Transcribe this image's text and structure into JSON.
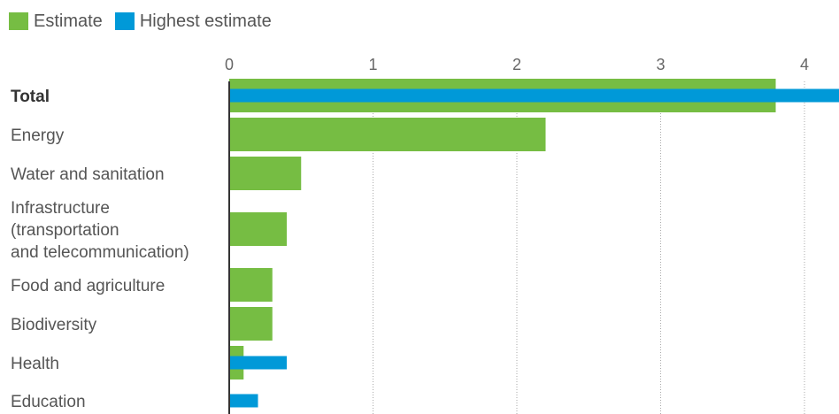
{
  "chart_data": {
    "type": "bar",
    "orientation": "horizontal",
    "title": "",
    "xlabel": "",
    "ylabel": "",
    "xlim": [
      0,
      4.25
    ],
    "ticks": [
      0,
      1,
      2,
      3,
      4
    ],
    "grid": true,
    "legend_position": "top-left",
    "categories": [
      [
        "Total"
      ],
      [
        "Energy"
      ],
      [
        "Water and sanitation"
      ],
      [
        "Infrastructure",
        "(transportation",
        "and telecommunication)"
      ],
      [
        "Food and agriculture"
      ],
      [
        "Biodiversity"
      ],
      [
        "Health"
      ],
      [
        "Education"
      ]
    ],
    "series": [
      {
        "name": "Estimate",
        "color": "#76bd43",
        "values": [
          3.8,
          2.2,
          0.5,
          0.4,
          0.3,
          0.3,
          0.1,
          null
        ]
      },
      {
        "name": "Highest estimate",
        "color": "#0099d8",
        "values": [
          4.3,
          null,
          null,
          null,
          null,
          null,
          0.4,
          0.2
        ]
      }
    ]
  }
}
